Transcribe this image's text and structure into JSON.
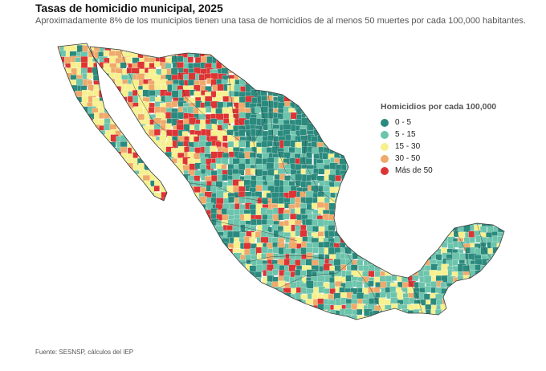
{
  "header": {
    "title": "Tasas de homicidio municipal, 2025",
    "subtitle": "Aproximadamente 8% de los municipios tienen una tasa de homicidios de al menos 50 muertes por cada 100,000 habitantes."
  },
  "legend": {
    "title": "Homicidios por cada 100,000",
    "items": [
      {
        "label": "0 - 5",
        "color": "#2a8a7d"
      },
      {
        "label": "5 - 15",
        "color": "#6cc4ac"
      },
      {
        "label": "15 - 30",
        "color": "#f6f08f"
      },
      {
        "label": "30 - 50",
        "color": "#efa96a"
      },
      {
        "label": "Más de 50",
        "color": "#dd3434"
      }
    ]
  },
  "map": {
    "country": "México",
    "border_color": "#333333"
  },
  "footer": {
    "source": "Fuente: SESNSP, cálculos del IEP"
  }
}
